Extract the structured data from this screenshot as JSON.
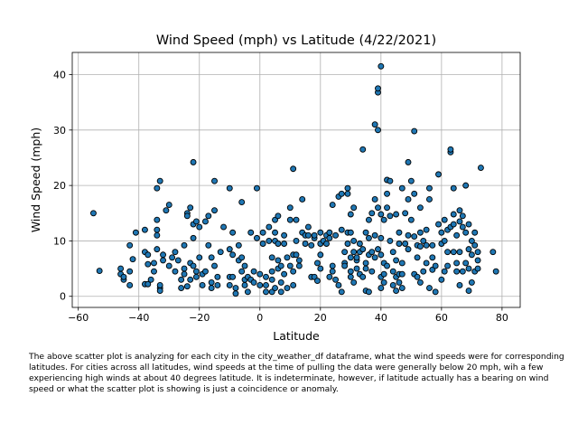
{
  "chart_data": {
    "type": "scatter",
    "title": "Wind Speed (mph) vs Latitude (4/22/2021)",
    "xlabel": "Latitude",
    "ylabel": "Wind Speed (mph)",
    "xlim": [
      -62,
      86
    ],
    "ylim": [
      -2,
      44
    ],
    "xticks": [
      -60,
      -40,
      -20,
      0,
      20,
      40,
      60,
      80
    ],
    "yticks": [
      0,
      10,
      20,
      30,
      40
    ],
    "grid": true,
    "marker_color": "#1f77b4",
    "edge_color": "#000000",
    "points": [
      [
        -55,
        15
      ],
      [
        -53,
        4.6
      ],
      [
        -46,
        4
      ],
      [
        -46,
        5
      ],
      [
        -45,
        3
      ],
      [
        -45,
        3.5
      ],
      [
        -43,
        2
      ],
      [
        -43,
        4.5
      ],
      [
        -43,
        9.2
      ],
      [
        -42,
        6.7
      ],
      [
        -41,
        11.5
      ],
      [
        -38,
        2.2
      ],
      [
        -38,
        8
      ],
      [
        -38,
        12
      ],
      [
        -37,
        5.8
      ],
      [
        -37,
        7.5
      ],
      [
        -37,
        2.2
      ],
      [
        -36,
        3
      ],
      [
        -35,
        6
      ],
      [
        -35,
        4.5
      ],
      [
        -34,
        8.5
      ],
      [
        -34,
        12
      ],
      [
        -34,
        13.8
      ],
      [
        -34,
        11
      ],
      [
        -34,
        19.5
      ],
      [
        -33,
        20.8
      ],
      [
        -33,
        1.5
      ],
      [
        -33,
        2
      ],
      [
        -33,
        1
      ],
      [
        -32,
        6.5
      ],
      [
        -32,
        7.5
      ],
      [
        -31,
        15.5
      ],
      [
        -30,
        5.5
      ],
      [
        -30,
        16.5
      ],
      [
        -29,
        7
      ],
      [
        -28,
        8
      ],
      [
        -28,
        4.5
      ],
      [
        -27,
        6.5
      ],
      [
        -26,
        3
      ],
      [
        -26,
        1.5
      ],
      [
        -25,
        4
      ],
      [
        -25,
        5
      ],
      [
        -25,
        9.2
      ],
      [
        -24,
        1.8
      ],
      [
        -24,
        15
      ],
      [
        -24,
        14.5
      ],
      [
        -23,
        16
      ],
      [
        -23,
        6
      ],
      [
        -23,
        3
      ],
      [
        -22,
        24.2
      ],
      [
        -22,
        13
      ],
      [
        -22,
        10.5
      ],
      [
        -22,
        5.5
      ],
      [
        -21,
        13.5
      ],
      [
        -21,
        4.5
      ],
      [
        -21,
        3.5
      ],
      [
        -20,
        12.5
      ],
      [
        -20,
        7
      ],
      [
        -19,
        4
      ],
      [
        -19,
        2
      ],
      [
        -18,
        13.5
      ],
      [
        -18,
        4.5
      ],
      [
        -17,
        14.5
      ],
      [
        -17,
        9.2
      ],
      [
        -16,
        7
      ],
      [
        -16,
        1.5
      ],
      [
        -16,
        2.5
      ],
      [
        -15,
        20.8
      ],
      [
        -15,
        15.5
      ],
      [
        -15,
        5.5
      ],
      [
        -14,
        3.5
      ],
      [
        -14,
        2
      ],
      [
        -13,
        8
      ],
      [
        -12,
        12.5
      ],
      [
        -10,
        3.5
      ],
      [
        -10,
        19.5
      ],
      [
        -10,
        8.5
      ],
      [
        -10,
        2
      ],
      [
        -9,
        11.5
      ],
      [
        -9,
        7.5
      ],
      [
        -9,
        3.5
      ],
      [
        -8,
        1.5
      ],
      [
        -8,
        0.5
      ],
      [
        -7,
        6.5
      ],
      [
        -7,
        9.2
      ],
      [
        -6,
        7
      ],
      [
        -6,
        4.5
      ],
      [
        -6,
        17
      ],
      [
        -5,
        5.5
      ],
      [
        -5,
        3
      ],
      [
        -5,
        2
      ],
      [
        -4,
        0.8
      ],
      [
        -4,
        3.5
      ],
      [
        -3,
        3
      ],
      [
        -3,
        11.5
      ],
      [
        -2,
        4.5
      ],
      [
        -2,
        2.5
      ],
      [
        -1,
        19.5
      ],
      [
        -1,
        10.5
      ],
      [
        0,
        4
      ],
      [
        0,
        2
      ],
      [
        1,
        9.5
      ],
      [
        1,
        11.5
      ],
      [
        2,
        0.8
      ],
      [
        2,
        3.5
      ],
      [
        2,
        2
      ],
      [
        3,
        12.5
      ],
      [
        3,
        10
      ],
      [
        4,
        0.8
      ],
      [
        4,
        4.5
      ],
      [
        4,
        7
      ],
      [
        4,
        3
      ],
      [
        5,
        10
      ],
      [
        5,
        13.8
      ],
      [
        5,
        11.5
      ],
      [
        5,
        1.5
      ],
      [
        6,
        14.5
      ],
      [
        6,
        9.5
      ],
      [
        6,
        6.5
      ],
      [
        6,
        5
      ],
      [
        7,
        2.5
      ],
      [
        7,
        0.8
      ],
      [
        7,
        5.5
      ],
      [
        8,
        11
      ],
      [
        8,
        9.5
      ],
      [
        8,
        4
      ],
      [
        9,
        7
      ],
      [
        9,
        1.5
      ],
      [
        10,
        13.8
      ],
      [
        10,
        16
      ],
      [
        10,
        5.5
      ],
      [
        11,
        23
      ],
      [
        11,
        4.5
      ],
      [
        11,
        7.5
      ],
      [
        11,
        2
      ],
      [
        12,
        10
      ],
      [
        12,
        13.8
      ],
      [
        12,
        7.5
      ],
      [
        13,
        5.5
      ],
      [
        13,
        6.5
      ],
      [
        14,
        17.5
      ],
      [
        14,
        11.5
      ],
      [
        15,
        9.5
      ],
      [
        15,
        11
      ],
      [
        16,
        12.5
      ],
      [
        16,
        11
      ],
      [
        17,
        9.2
      ],
      [
        17,
        3.5
      ],
      [
        18,
        10.5
      ],
      [
        18,
        11
      ],
      [
        18,
        3.5
      ],
      [
        19,
        6
      ],
      [
        19,
        2.8
      ],
      [
        20,
        9.5
      ],
      [
        20,
        5
      ],
      [
        20,
        7.5
      ],
      [
        20,
        11.5
      ],
      [
        21,
        10
      ],
      [
        22,
        11
      ],
      [
        22,
        9.5
      ],
      [
        23,
        11.5
      ],
      [
        23,
        10.5
      ],
      [
        23,
        3.5
      ],
      [
        24,
        4.5
      ],
      [
        24,
        5.5
      ],
      [
        24,
        16.5
      ],
      [
        25,
        3
      ],
      [
        25,
        11
      ],
      [
        26,
        18
      ],
      [
        26,
        2
      ],
      [
        27,
        12
      ],
      [
        27,
        0.8
      ],
      [
        27,
        18.5
      ],
      [
        28,
        6
      ],
      [
        28,
        5.5
      ],
      [
        28,
        8
      ],
      [
        29,
        19.5
      ],
      [
        29,
        11.5
      ],
      [
        29,
        9.5
      ],
      [
        29,
        18.5
      ],
      [
        30,
        7
      ],
      [
        30,
        4.5
      ],
      [
        30,
        3.5
      ],
      [
        30,
        14.8
      ],
      [
        30,
        11.5
      ],
      [
        31,
        16
      ],
      [
        31,
        10
      ],
      [
        31,
        8
      ],
      [
        31,
        2.5
      ],
      [
        32,
        6.5
      ],
      [
        32,
        7
      ],
      [
        32,
        5
      ],
      [
        33,
        8
      ],
      [
        33,
        4
      ],
      [
        33,
        9.5
      ],
      [
        34,
        26.5
      ],
      [
        34,
        3.5
      ],
      [
        34,
        8.5
      ],
      [
        35,
        5
      ],
      [
        35,
        6
      ],
      [
        35,
        11.5
      ],
      [
        35,
        1
      ],
      [
        36,
        13.8
      ],
      [
        36,
        7.5
      ],
      [
        36,
        10.5
      ],
      [
        36,
        0.8
      ],
      [
        37,
        8
      ],
      [
        37,
        15
      ],
      [
        37,
        4.5
      ],
      [
        38,
        31
      ],
      [
        38,
        17.5
      ],
      [
        38,
        11
      ],
      [
        38,
        7
      ],
      [
        39,
        36.8
      ],
      [
        39,
        37.5
      ],
      [
        39,
        30
      ],
      [
        39,
        8.5
      ],
      [
        39,
        16
      ],
      [
        40,
        41.5
      ],
      [
        40,
        10.5
      ],
      [
        40,
        1.5
      ],
      [
        40,
        3.5
      ],
      [
        40,
        7.5
      ],
      [
        40,
        14.8
      ],
      [
        41,
        6
      ],
      [
        41,
        4
      ],
      [
        41,
        13.8
      ],
      [
        41,
        2.5
      ],
      [
        42,
        21
      ],
      [
        42,
        16
      ],
      [
        42,
        18.5
      ],
      [
        42,
        5.5
      ],
      [
        43,
        20.8
      ],
      [
        43,
        10
      ],
      [
        43,
        14.5
      ],
      [
        44,
        8
      ],
      [
        44,
        2
      ],
      [
        44,
        4.5
      ],
      [
        45,
        14.8
      ],
      [
        45,
        6.5
      ],
      [
        45,
        1
      ],
      [
        45,
        3.5
      ],
      [
        46,
        11.5
      ],
      [
        46,
        4
      ],
      [
        46,
        2.5
      ],
      [
        46,
        9.5
      ],
      [
        47,
        19.5
      ],
      [
        47,
        6
      ],
      [
        47,
        4
      ],
      [
        47,
        1.5
      ],
      [
        48,
        9.5
      ],
      [
        48,
        15
      ],
      [
        49,
        24.2
      ],
      [
        49,
        17.5
      ],
      [
        49,
        11
      ],
      [
        49,
        8.5
      ],
      [
        50,
        20.8
      ],
      [
        50,
        13.8
      ],
      [
        51,
        10.8
      ],
      [
        51,
        29.8
      ],
      [
        51,
        18.5
      ],
      [
        51,
        4
      ],
      [
        52,
        7
      ],
      [
        52,
        9.2
      ],
      [
        52,
        3.5
      ],
      [
        53,
        11.5
      ],
      [
        53,
        9
      ],
      [
        53,
        2.5
      ],
      [
        53,
        16
      ],
      [
        54,
        10
      ],
      [
        54,
        4.5
      ],
      [
        55,
        12
      ],
      [
        55,
        9.2
      ],
      [
        55,
        6
      ],
      [
        56,
        17.5
      ],
      [
        56,
        19.5
      ],
      [
        56,
        1.5
      ],
      [
        57,
        9.2
      ],
      [
        57,
        7
      ],
      [
        57,
        4.8
      ],
      [
        58,
        5.5
      ],
      [
        58,
        0.8
      ],
      [
        59,
        13
      ],
      [
        59,
        22
      ],
      [
        60,
        3
      ],
      [
        60,
        11.5
      ],
      [
        60,
        9.5
      ],
      [
        61,
        13.8
      ],
      [
        61,
        10
      ],
      [
        61,
        4.5
      ],
      [
        62,
        12
      ],
      [
        62,
        8
      ],
      [
        62,
        5.5
      ],
      [
        63,
        26
      ],
      [
        63,
        12.5
      ],
      [
        63,
        26.5
      ],
      [
        64,
        14.8
      ],
      [
        64,
        19.5
      ],
      [
        64,
        13
      ],
      [
        64,
        8
      ],
      [
        65,
        11
      ],
      [
        65,
        6
      ],
      [
        65,
        4.5
      ],
      [
        66,
        15.5
      ],
      [
        66,
        13.5
      ],
      [
        66,
        8
      ],
      [
        66,
        2
      ],
      [
        67,
        14.5
      ],
      [
        67,
        12.5
      ],
      [
        67,
        4.5
      ],
      [
        68,
        20
      ],
      [
        68,
        11.5
      ],
      [
        68,
        6
      ],
      [
        69,
        13
      ],
      [
        69,
        8.5
      ],
      [
        69,
        5
      ],
      [
        69,
        1
      ],
      [
        70,
        7.5
      ],
      [
        70,
        2.5
      ],
      [
        70,
        10
      ],
      [
        71,
        11.5
      ],
      [
        71,
        9.2
      ],
      [
        71,
        4.5
      ],
      [
        72,
        8
      ],
      [
        72,
        6.5
      ],
      [
        72,
        5
      ],
      [
        73,
        23.2
      ],
      [
        77,
        8
      ],
      [
        78,
        4.5
      ]
    ]
  },
  "caption": "The above scatter plot is analyzing for each city in the city_weather_df dataframe, what the wind speeds were for corresponding latitudes. For cities across all latitudes, wind speeds at the time of pulling the data were generally below 20 mph, wih a few experiencing high winds at about 40 degrees latitude. It is indeterminate, however, if latitude actually has a bearing on wind speed or what the scatter plot is showing is just a coincidence or anomaly."
}
